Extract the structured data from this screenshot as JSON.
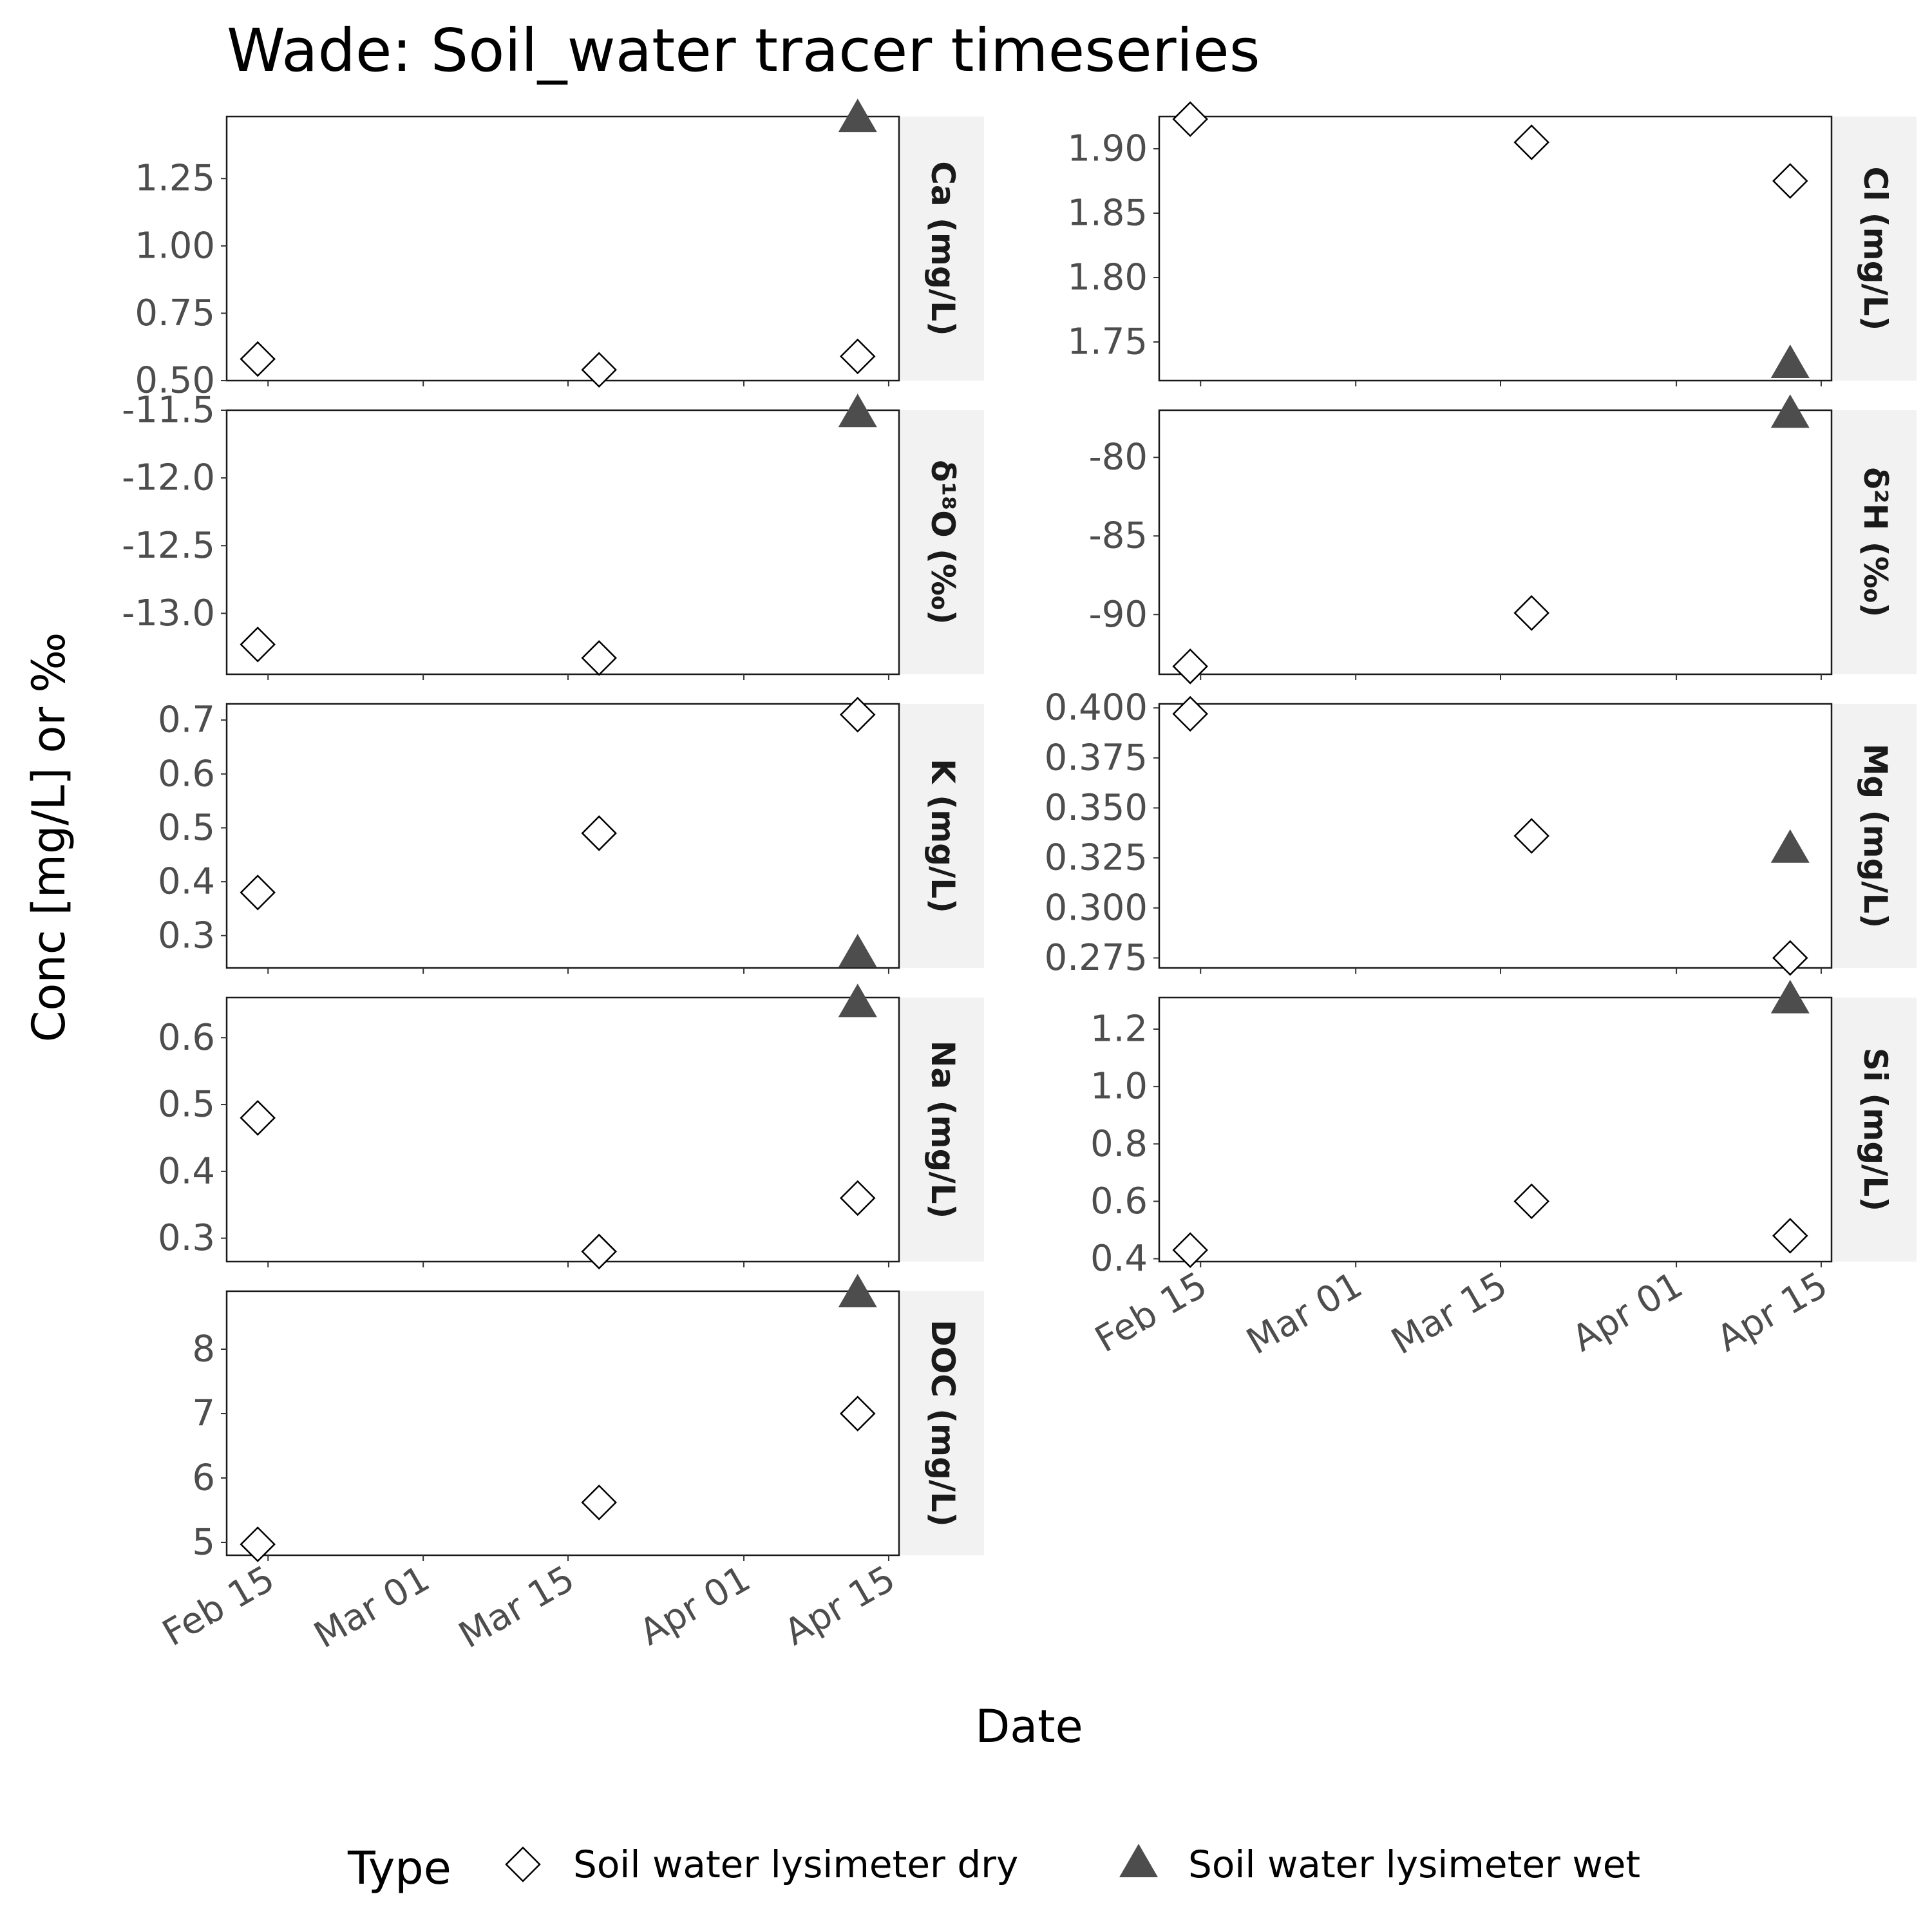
{
  "title": "Wade: Soil_water tracer timeseries",
  "xlabel": "Date",
  "ylabel": "Conc [mg/L] or ‰",
  "legend": {
    "title": "Type",
    "items": [
      {
        "label": "Soil water lysimeter dry",
        "marker": "open-diamond",
        "color": "#000000"
      },
      {
        "label": "Soil water lysimeter wet",
        "marker": "filled-triangle",
        "color": "#4d4d4d"
      }
    ]
  },
  "chart_data": {
    "type": "scatter",
    "facet_layout": "2 columns, x axis shared per column (Date)",
    "x_range": [
      "2024-02-11",
      "2024-04-16"
    ],
    "x_ticks": [
      {
        "date": "2024-02-15",
        "label": "Feb 15"
      },
      {
        "date": "2024-03-01",
        "label": "Mar 01"
      },
      {
        "date": "2024-03-15",
        "label": "Mar 15"
      },
      {
        "date": "2024-04-01",
        "label": "Apr 01"
      },
      {
        "date": "2024-04-15",
        "label": "Apr 15"
      }
    ],
    "panels": [
      {
        "strip": "Ca (mg/L)",
        "ylim": [
          0.5,
          1.48
        ],
        "yticks": [
          0.5,
          0.75,
          1.0,
          1.25
        ],
        "ytick_labels": [
          "0.50",
          "0.75",
          "1.00",
          "1.25"
        ],
        "dry": [
          {
            "x": "2024-02-14",
            "y": 0.58
          },
          {
            "x": "2024-03-18",
            "y": 0.54
          },
          {
            "x": "2024-04-12",
            "y": 0.59
          }
        ],
        "wet": [
          {
            "x": "2024-04-12",
            "y": 1.47
          }
        ]
      },
      {
        "strip": "Cl (mg/L)",
        "ylim": [
          1.72,
          1.925
        ],
        "yticks": [
          1.75,
          1.8,
          1.85,
          1.9
        ],
        "ytick_labels": [
          "1.75",
          "1.80",
          "1.85",
          "1.90"
        ],
        "dry": [
          {
            "x": "2024-02-14",
            "y": 1.923
          },
          {
            "x": "2024-03-18",
            "y": 1.905
          },
          {
            "x": "2024-04-12",
            "y": 1.875
          }
        ],
        "wet": [
          {
            "x": "2024-04-12",
            "y": 1.732
          }
        ]
      },
      {
        "strip": "δ¹⁸O (‰)",
        "ylim": [
          -13.45,
          -11.5
        ],
        "yticks": [
          -13.0,
          -12.5,
          -12.0,
          -11.5
        ],
        "ytick_labels": [
          "-13.0",
          "-12.5",
          "-12.0",
          "-11.5"
        ],
        "dry": [
          {
            "x": "2024-02-14",
            "y": -13.23
          },
          {
            "x": "2024-03-18",
            "y": -13.33
          }
        ],
        "wet": [
          {
            "x": "2024-04-12",
            "y": -11.53
          }
        ]
      },
      {
        "strip": "δ²H (‰)",
        "ylim": [
          -93.8,
          -77.0
        ],
        "yticks": [
          -90,
          -85,
          -80
        ],
        "ytick_labels": [
          "-90",
          "-85",
          "-80"
        ],
        "dry": [
          {
            "x": "2024-02-14",
            "y": -93.3
          },
          {
            "x": "2024-03-18",
            "y": -89.9
          }
        ],
        "wet": [
          {
            "x": "2024-04-12",
            "y": -77.3
          }
        ]
      },
      {
        "strip": "K (mg/L)",
        "ylim": [
          0.24,
          0.73
        ],
        "yticks": [
          0.3,
          0.4,
          0.5,
          0.6,
          0.7
        ],
        "ytick_labels": [
          "0.3",
          "0.4",
          "0.5",
          "0.6",
          "0.7"
        ],
        "dry": [
          {
            "x": "2024-02-14",
            "y": 0.38
          },
          {
            "x": "2024-03-18",
            "y": 0.49
          },
          {
            "x": "2024-04-12",
            "y": 0.71
          }
        ],
        "wet": [
          {
            "x": "2024-04-12",
            "y": 0.265
          }
        ]
      },
      {
        "strip": "Mg (mg/L)",
        "ylim": [
          0.27,
          0.402
        ],
        "yticks": [
          0.275,
          0.3,
          0.325,
          0.35,
          0.375,
          0.4
        ],
        "ytick_labels": [
          "0.275",
          "0.300",
          "0.325",
          "0.350",
          "0.375",
          "0.400"
        ],
        "dry": [
          {
            "x": "2024-02-14",
            "y": 0.397
          },
          {
            "x": "2024-03-18",
            "y": 0.336
          },
          {
            "x": "2024-04-12",
            "y": 0.275
          }
        ],
        "wet": [
          {
            "x": "2024-04-12",
            "y": 0.329
          }
        ]
      },
      {
        "strip": "Na (mg/L)",
        "ylim": [
          0.265,
          0.66
        ],
        "yticks": [
          0.3,
          0.4,
          0.5,
          0.6
        ],
        "ytick_labels": [
          "0.3",
          "0.4",
          "0.5",
          "0.6"
        ],
        "dry": [
          {
            "x": "2024-02-14",
            "y": 0.48
          },
          {
            "x": "2024-03-18",
            "y": 0.28
          },
          {
            "x": "2024-04-12",
            "y": 0.36
          }
        ],
        "wet": [
          {
            "x": "2024-04-12",
            "y": 0.65
          }
        ]
      },
      {
        "strip": "Si (mg/L)",
        "ylim": [
          0.39,
          1.31
        ],
        "yticks": [
          0.4,
          0.6,
          0.8,
          1.0,
          1.2
        ],
        "ytick_labels": [
          "0.4",
          "0.6",
          "0.8",
          "1.0",
          "1.2"
        ],
        "dry": [
          {
            "x": "2024-02-14",
            "y": 0.43
          },
          {
            "x": "2024-03-18",
            "y": 0.6
          },
          {
            "x": "2024-04-12",
            "y": 0.48
          }
        ],
        "wet": [
          {
            "x": "2024-04-12",
            "y": 1.3
          }
        ]
      },
      {
        "strip": "DOC (mg/L)",
        "ylim": [
          4.8,
          8.9
        ],
        "yticks": [
          5,
          6,
          7,
          8
        ],
        "ytick_labels": [
          "5",
          "6",
          "7",
          "8"
        ],
        "dry": [
          {
            "x": "2024-02-14",
            "y": 4.97
          },
          {
            "x": "2024-03-18",
            "y": 5.62
          },
          {
            "x": "2024-04-12",
            "y": 7.0
          }
        ],
        "wet": [
          {
            "x": "2024-04-12",
            "y": 8.85
          }
        ]
      }
    ]
  }
}
